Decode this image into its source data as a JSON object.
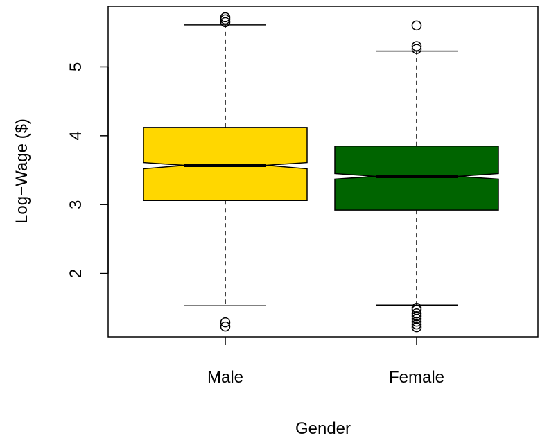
{
  "chart_data": {
    "type": "boxplot",
    "notched": true,
    "xlabel": "Gender",
    "ylabel": "Log−Wage ($)",
    "categories": [
      "Male",
      "Female"
    ],
    "ylim": [
      1.08,
      5.88
    ],
    "yticks": [
      2,
      3,
      4,
      5
    ],
    "ytick_labels": [
      "2",
      "3",
      "4",
      "5"
    ],
    "boxes": [
      {
        "name": "Male",
        "color": "#FFD700",
        "whisker_low": 1.53,
        "q1": 3.06,
        "median": 3.57,
        "q3": 4.12,
        "whisker_high": 5.61,
        "notch_low": 3.52,
        "notch_high": 3.61,
        "outliers": [
          1.23,
          1.29,
          5.65,
          5.69,
          5.72
        ]
      },
      {
        "name": "Female",
        "color": "#006400",
        "whisker_low": 1.54,
        "q1": 2.92,
        "median": 3.41,
        "q3": 3.85,
        "whisker_high": 5.23,
        "notch_low": 3.37,
        "notch_high": 3.45,
        "outliers": [
          1.22,
          1.26,
          1.3,
          1.34,
          1.38,
          1.42,
          1.47,
          1.5,
          5.26,
          5.3,
          5.6
        ]
      }
    ],
    "grid": false,
    "legend": "none"
  }
}
